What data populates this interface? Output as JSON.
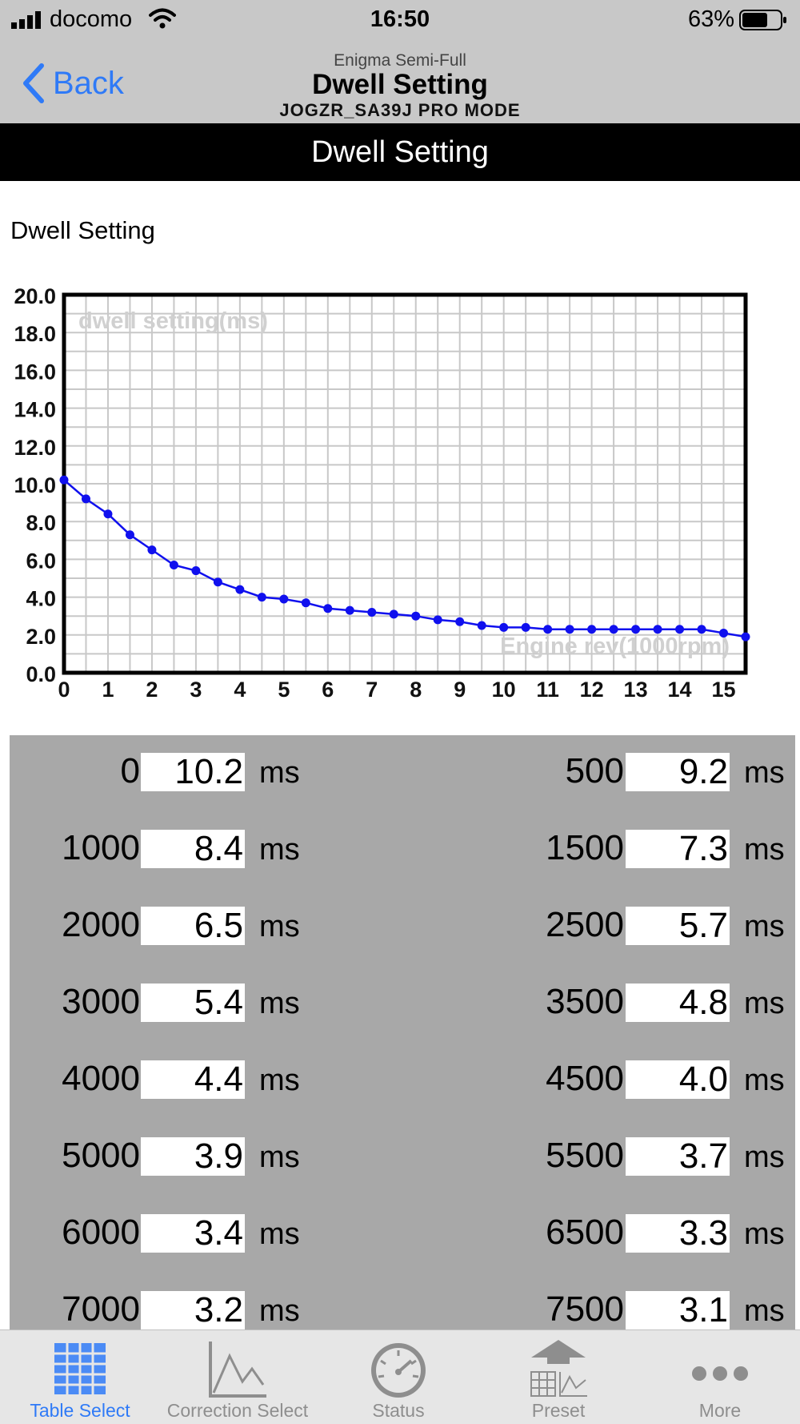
{
  "status_bar": {
    "carrier": "docomo",
    "time": "16:50",
    "battery": "63%"
  },
  "nav": {
    "back_label": "Back",
    "subtitle": "Enigma Semi-Full",
    "title": "Dwell Setting",
    "mode": "JOGZR_SA39J PRO MODE"
  },
  "banner": "Dwell Setting",
  "section_label": "Dwell Setting",
  "chart_data": {
    "type": "line",
    "y_label": "dwell setting(ms)",
    "x_label": "Engine rev(1000rpm)",
    "ylim": [
      0,
      20
    ],
    "xlim": [
      0,
      15.5
    ],
    "y_ticks": [
      "0.0",
      "2.0",
      "4.0",
      "6.0",
      "8.0",
      "10.0",
      "12.0",
      "14.0",
      "16.0",
      "18.0",
      "20.0"
    ],
    "x_ticks": [
      "0",
      "1",
      "2",
      "3",
      "4",
      "5",
      "6",
      "7",
      "8",
      "9",
      "10",
      "11",
      "12",
      "13",
      "14",
      "15"
    ],
    "grid": true,
    "line_color": "#1010ee",
    "x": [
      0,
      0.5,
      1,
      1.5,
      2,
      2.5,
      3,
      3.5,
      4,
      4.5,
      5,
      5.5,
      6,
      6.5,
      7,
      7.5,
      8,
      8.5,
      9,
      9.5,
      10,
      10.5,
      11,
      11.5,
      12,
      12.5,
      13,
      13.5,
      14,
      14.5,
      15,
      15.5
    ],
    "y": [
      10.2,
      9.2,
      8.4,
      7.3,
      6.5,
      5.7,
      5.4,
      4.8,
      4.4,
      4.0,
      3.9,
      3.7,
      3.4,
      3.3,
      3.2,
      3.1,
      3.0,
      2.8,
      2.7,
      2.5,
      2.4,
      2.4,
      2.3,
      2.3,
      2.3,
      2.3,
      2.3,
      2.3,
      2.3,
      2.3,
      2.1,
      1.9
    ]
  },
  "table": {
    "unit": "ms",
    "rows": [
      {
        "left_rpm": "0",
        "left_val": "10.2",
        "right_rpm": "500",
        "right_val": "9.2"
      },
      {
        "left_rpm": "1000",
        "left_val": "8.4",
        "right_rpm": "1500",
        "right_val": "7.3"
      },
      {
        "left_rpm": "2000",
        "left_val": "6.5",
        "right_rpm": "2500",
        "right_val": "5.7"
      },
      {
        "left_rpm": "3000",
        "left_val": "5.4",
        "right_rpm": "3500",
        "right_val": "4.8"
      },
      {
        "left_rpm": "4000",
        "left_val": "4.4",
        "right_rpm": "4500",
        "right_val": "4.0"
      },
      {
        "left_rpm": "5000",
        "left_val": "3.9",
        "right_rpm": "5500",
        "right_val": "3.7"
      },
      {
        "left_rpm": "6000",
        "left_val": "3.4",
        "right_rpm": "6500",
        "right_val": "3.3"
      },
      {
        "left_rpm": "7000",
        "left_val": "3.2",
        "right_rpm": "7500",
        "right_val": "3.1"
      }
    ]
  },
  "tabs": [
    {
      "label": "Table Select",
      "icon": "table-grid-icon",
      "active": true
    },
    {
      "label": "Correction Select",
      "icon": "line-chart-icon",
      "active": false
    },
    {
      "label": "Status",
      "icon": "gauge-icon",
      "active": false
    },
    {
      "label": "Preset",
      "icon": "preset-upload-icon",
      "active": false
    },
    {
      "label": "More",
      "icon": "more-dots-icon",
      "active": false
    }
  ],
  "colors": {
    "accent": "#2f7af7",
    "bar_bg": "#c8c8c8",
    "table_bg": "#a8a8a8",
    "line": "#1010ee"
  }
}
